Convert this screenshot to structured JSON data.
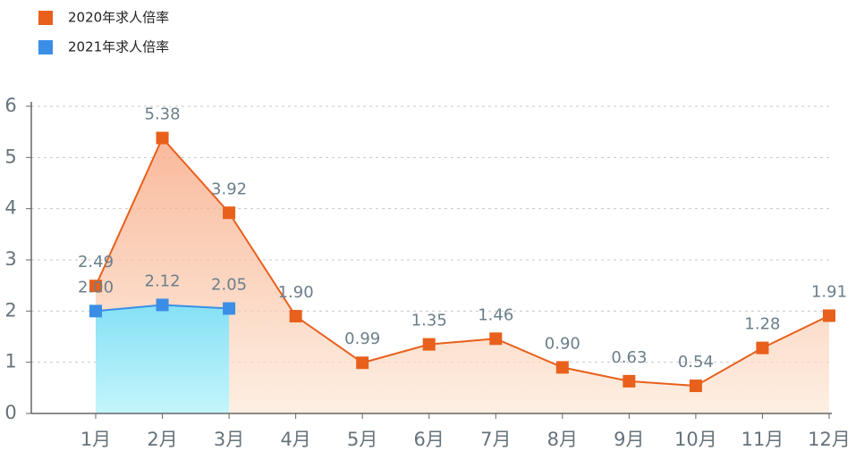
{
  "chart_data": {
    "type": "line",
    "categories": [
      "1月",
      "2月",
      "3月",
      "4月",
      "5月",
      "6月",
      "7月",
      "8月",
      "9月",
      "10月",
      "11月",
      "12月"
    ],
    "series": [
      {
        "name": "2020年求人倍率",
        "color": "#e8601c",
        "values": [
          2.49,
          5.38,
          3.92,
          1.9,
          0.99,
          1.35,
          1.46,
          0.9,
          0.63,
          0.54,
          1.28,
          1.91
        ],
        "value_labels": [
          "2.49",
          "5.38",
          "3.92",
          "1.90",
          "0.99",
          "1.35",
          "1.46",
          "0.90",
          "0.63",
          "0.54",
          "1.28",
          "1.91"
        ]
      },
      {
        "name": "2021年求人倍率",
        "color": "#3a8ee6",
        "values": [
          2.0,
          2.12,
          2.05,
          null,
          null,
          null,
          null,
          null,
          null,
          null,
          null,
          null
        ],
        "value_labels": [
          "2.00",
          "2.12",
          "2.05",
          null,
          null,
          null,
          null,
          null,
          null,
          null,
          null,
          null
        ]
      }
    ],
    "ylim": [
      0,
      6
    ],
    "yticks": [
      0,
      1,
      2,
      3,
      4,
      5,
      6
    ],
    "grid": true,
    "legend": "top-left"
  }
}
